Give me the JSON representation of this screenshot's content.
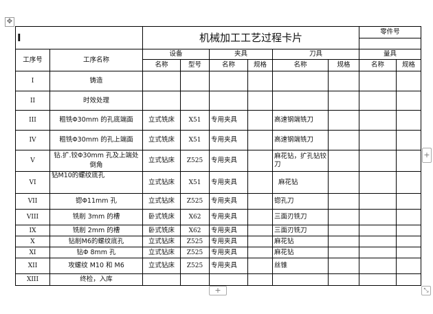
{
  "card_title": "机械加工工艺过程卡片",
  "cursor_text": "I",
  "part_number_label": "零件号",
  "headers": {
    "op_no": "工序号",
    "op_name": "工序名称",
    "equipment": "设备",
    "fixture": "夹具",
    "tool": "刀具",
    "gauge": "量具",
    "name": "名称",
    "model": "型号",
    "spec": "规格"
  },
  "rows": [
    {
      "no": "I",
      "name": "铸造",
      "eq_name": "",
      "eq_model": "",
      "fx_name": "",
      "tool_name": ""
    },
    {
      "no": "II",
      "name": "时效处理",
      "eq_name": "",
      "eq_model": "",
      "fx_name": "",
      "tool_name": ""
    },
    {
      "no": "III",
      "name": "粗铣Φ30mm 的孔底端面",
      "eq_name": "立式铣床",
      "eq_model": "X51",
      "fx_name": "专用夹具",
      "tool_name": "高速钢端铣刀"
    },
    {
      "no": "IV",
      "name": "粗铣Φ30mm 的孔上端面",
      "eq_name": "立式铣床",
      "eq_model": "X51",
      "fx_name": "专用夹具",
      "tool_name": "高速钢端铣刀"
    },
    {
      "no": "V",
      "name": "钻.扩.铰Φ30mm 孔及上端处倒角",
      "eq_name": "立式钻床",
      "eq_model": "Z525",
      "fx_name": "专用夹具",
      "tool_name": "麻花钻，扩孔钻铰刀"
    },
    {
      "no": "VI",
      "name": "钻M10的螺纹底孔",
      "eq_name": "立式钻床",
      "eq_model": "X51",
      "fx_name": "专用夹具",
      "tool_name": "麻花钻"
    },
    {
      "no": "VII",
      "name": "锪Φ11mm 孔",
      "eq_name": "立式钻床",
      "eq_model": "Z525",
      "fx_name": "专用夹具",
      "tool_name": "锪孔刀"
    },
    {
      "no": "VIII",
      "name": "铣削 3mm 的槽",
      "eq_name": "卧式铣床",
      "eq_model": "X62",
      "fx_name": "专用夹具",
      "tool_name": "三面刃铣刀"
    },
    {
      "no": "IX",
      "name": "铣削 2mm 的槽",
      "eq_name": "卧式铣床",
      "eq_model": "X62",
      "fx_name": "专用夹具",
      "tool_name": "三面刃铣刀"
    },
    {
      "no": "X",
      "name": "钻削M6的螺纹底孔",
      "eq_name": "立式钻床",
      "eq_model": "Z525",
      "fx_name": "专用夹具",
      "tool_name": "麻花钻"
    },
    {
      "no": "XI",
      "name": "钻Φ 8mm 孔",
      "eq_name": "立式钻床",
      "eq_model": "Z525",
      "fx_name": "专用夹具",
      "tool_name": "麻花钻"
    },
    {
      "no": "XII",
      "name": "攻螺纹 M10 和 M6",
      "eq_name": "立式钻床",
      "eq_model": "Z525",
      "fx_name": "专用夹具",
      "tool_name": "丝锥"
    },
    {
      "no": "XIII",
      "name": "终检，入库",
      "eq_name": "",
      "eq_model": "",
      "fx_name": "",
      "tool_name": ""
    }
  ],
  "controls": {
    "add_row": "+",
    "add_column": "+",
    "move": "✥",
    "resize": "⤡"
  }
}
